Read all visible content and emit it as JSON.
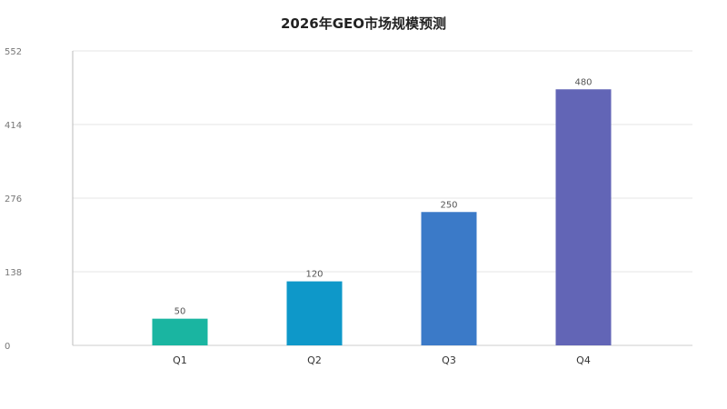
{
  "chart_data": {
    "type": "bar",
    "title": "2026年GEO市场规模预测",
    "xlabel": "",
    "ylabel": "",
    "categories": [
      "Q1",
      "Q2",
      "Q3",
      "Q4"
    ],
    "values": [
      50,
      120,
      250,
      480
    ],
    "ylim": [
      0,
      552
    ],
    "yticks": [
      0,
      138,
      276,
      414,
      552
    ],
    "grid": true,
    "legend": "none",
    "show_data_labels": true,
    "colors": [
      "#1ab5a1",
      "#0e98c9",
      "#3b7ac8",
      "#6265b6"
    ]
  }
}
